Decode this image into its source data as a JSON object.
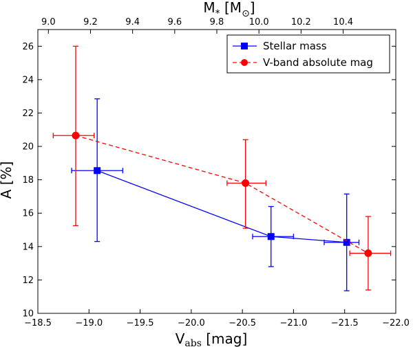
{
  "chart_data": {
    "type": "scatter",
    "xlabel": "V",
    "xlabel_sub": "abs",
    "xlabel_unit": " [mag]",
    "ylabel": "A [%]",
    "top_label": "M",
    "top_label_sub": "*",
    "top_label_unit_open": " [M",
    "top_label_unit_sub": "⊙",
    "top_label_unit_close": "]",
    "xlim": [
      -18.5,
      -22.0
    ],
    "ylim": [
      10,
      27
    ],
    "x_ticks": [
      -18.5,
      -19.0,
      -19.5,
      -20.0,
      -20.5,
      -21.0,
      -21.5,
      -22.0
    ],
    "x_tick_labels": [
      "−18.5",
      "−19.0",
      "−19.5",
      "−20.0",
      "−20.5",
      "−21.0",
      "−21.5",
      "−22.0"
    ],
    "y_ticks": [
      10,
      12,
      14,
      16,
      18,
      20,
      22,
      24,
      26
    ],
    "y_tick_labels": [
      "10",
      "12",
      "14",
      "16",
      "18",
      "20",
      "22",
      "24",
      "26"
    ],
    "top_xlim": [
      8.95,
      10.65
    ],
    "top_ticks": [
      9.0,
      9.2,
      9.4,
      9.6,
      9.8,
      10.0,
      10.2,
      10.4
    ],
    "top_tick_labels": [
      "9.0",
      "9.2",
      "9.4",
      "9.6",
      "9.8",
      "10.0",
      "10.2",
      "10.4"
    ],
    "legend_position": "top-right",
    "series": [
      {
        "name": "Stellar mass",
        "color": "#0000ff",
        "marker": "square",
        "linestyle": "solid",
        "x": [
          -19.08,
          -20.78,
          -21.52
        ],
        "y": [
          18.55,
          14.6,
          14.25
        ],
        "xerr_low": [
          0.25,
          0.18,
          0.22
        ],
        "xerr_high": [
          0.25,
          0.22,
          0.12
        ],
        "yerr_low": [
          4.25,
          1.8,
          2.9
        ],
        "yerr_high": [
          4.3,
          1.8,
          2.9
        ]
      },
      {
        "name": "V-band absolute mag",
        "color": "#ff0000",
        "marker": "circle",
        "linestyle": "dashed",
        "x": [
          -18.87,
          -20.53,
          -21.73
        ],
        "y": [
          20.65,
          17.8,
          13.6
        ],
        "xerr_low": [
          0.22,
          0.18,
          0.18
        ],
        "xerr_high": [
          0.18,
          0.2,
          0.22
        ],
        "yerr_low": [
          5.4,
          2.7,
          2.2
        ],
        "yerr_high": [
          5.35,
          2.6,
          2.2
        ]
      }
    ]
  }
}
